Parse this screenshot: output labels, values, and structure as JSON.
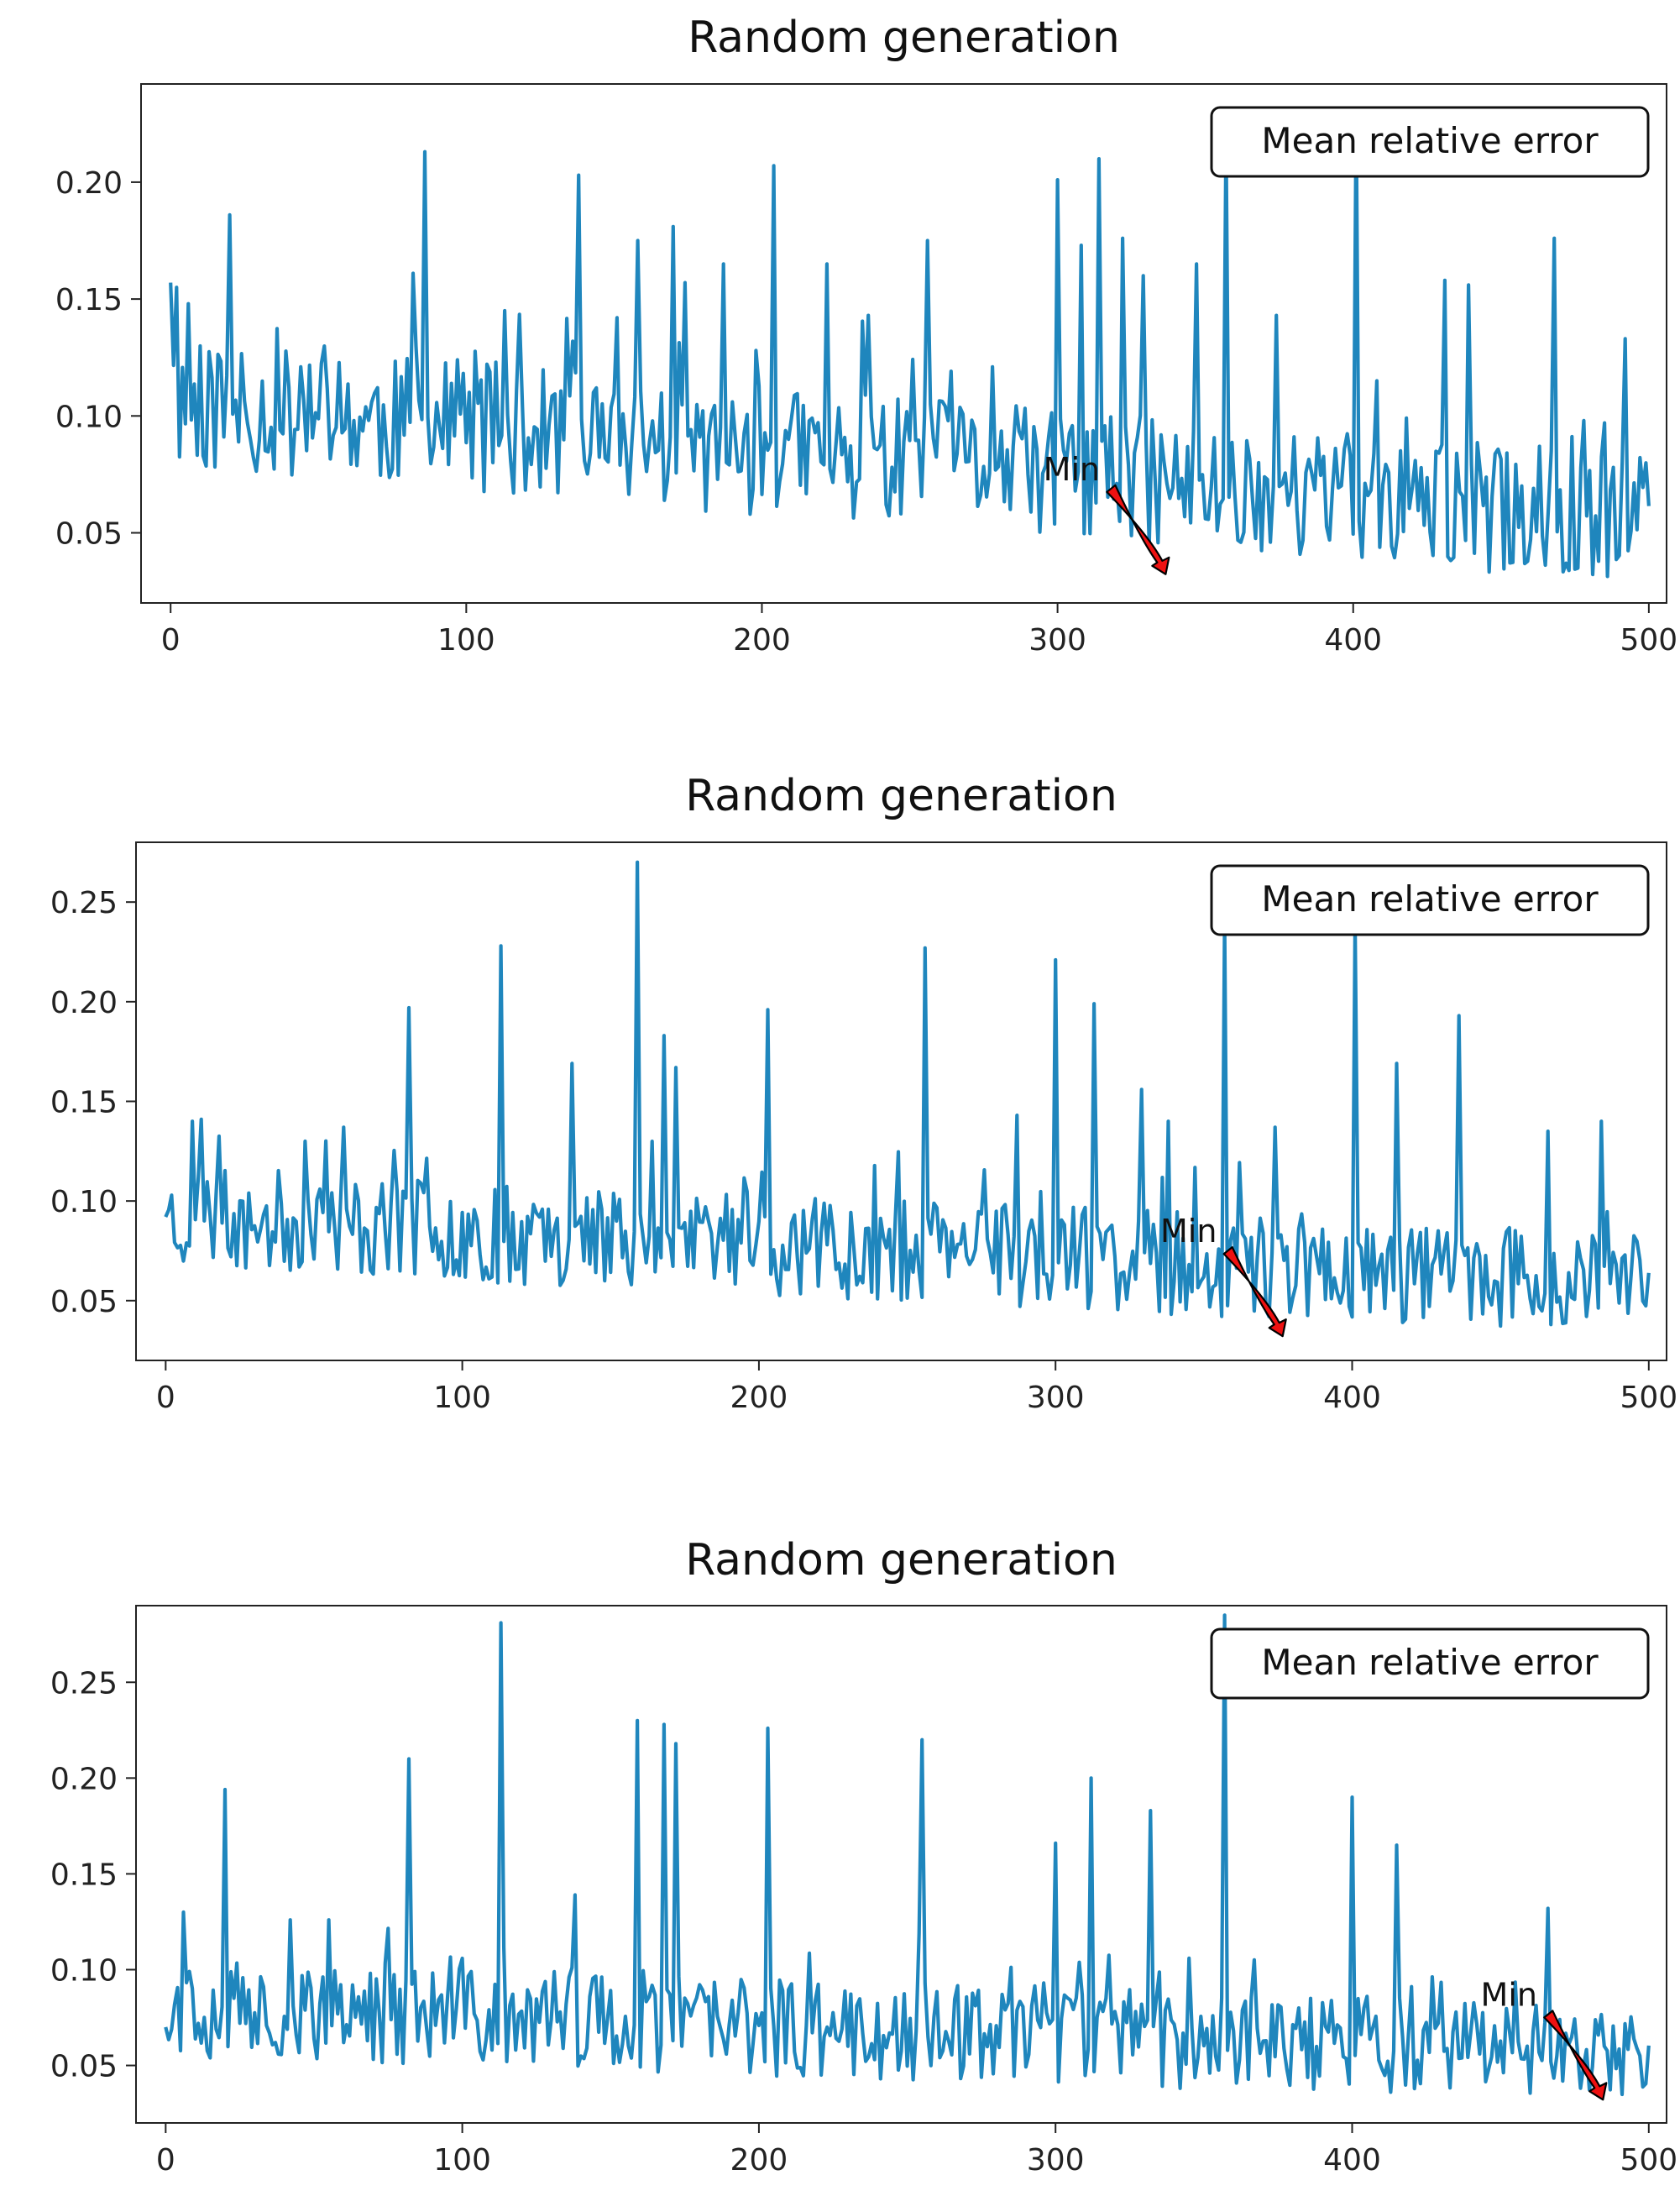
{
  "chart_data": [
    {
      "type": "line",
      "title": "Random generation",
      "legend": "Mean relative error",
      "legend_position": "top-right",
      "annotation": {
        "text": "Min",
        "target_x": 336,
        "target_y": 0.033
      },
      "xlabel": "",
      "ylabel": "",
      "xlim": [
        -10,
        506
      ],
      "ylim": [
        0.02,
        0.242
      ],
      "xticks": [
        0,
        100,
        200,
        300,
        400,
        500
      ],
      "yticks": [
        0.05,
        0.1,
        0.15,
        0.2
      ],
      "series": [
        {
          "name": "Mean relative error",
          "color": "#1f86bd",
          "seed": 11,
          "start": 0.157,
          "baseline_start": 0.105,
          "baseline_end": 0.055,
          "noise": 0.028,
          "floor": 0.03,
          "spikes": [
            [
              2,
              0.155
            ],
            [
              6,
              0.148
            ],
            [
              20,
              0.186
            ],
            [
              44,
              0.121
            ],
            [
              82,
              0.161
            ],
            [
              86,
              0.213
            ],
            [
              97,
              0.124
            ],
            [
              110,
              0.123
            ],
            [
              113,
              0.145
            ],
            [
              138,
              0.203
            ],
            [
              151,
              0.142
            ],
            [
              158,
              0.175
            ],
            [
              170,
              0.181
            ],
            [
              174,
              0.157
            ],
            [
              187,
              0.165
            ],
            [
              198,
              0.128
            ],
            [
              204,
              0.207
            ],
            [
              222,
              0.165
            ],
            [
              236,
              0.143
            ],
            [
              256,
              0.175
            ],
            [
              278,
              0.121
            ],
            [
              300,
              0.201
            ],
            [
              308,
              0.173
            ],
            [
              314,
              0.21
            ],
            [
              322,
              0.176
            ],
            [
              329,
              0.16
            ],
            [
              347,
              0.165
            ],
            [
              357,
              0.22
            ],
            [
              374,
              0.143
            ],
            [
              401,
              0.23
            ],
            [
              408,
              0.115
            ],
            [
              431,
              0.158
            ],
            [
              439,
              0.156
            ],
            [
              463,
              0.087
            ],
            [
              468,
              0.176
            ],
            [
              478,
              0.098
            ],
            [
              485,
              0.097
            ],
            [
              492,
              0.133
            ]
          ]
        }
      ]
    },
    {
      "type": "line",
      "title": "Random generation",
      "legend": "Mean relative error",
      "legend_position": "top-right",
      "annotation": {
        "text": "Min",
        "target_x": 376,
        "target_y": 0.033
      },
      "xlabel": "",
      "ylabel": "",
      "xlim": [
        -10,
        506
      ],
      "ylim": [
        0.02,
        0.28
      ],
      "xticks": [
        0,
        100,
        200,
        300,
        400,
        500
      ],
      "yticks": [
        0.05,
        0.1,
        0.15,
        0.2,
        0.25
      ],
      "series": [
        {
          "name": "Mean relative error",
          "color": "#1f86bd",
          "seed": 23,
          "start": 0.092,
          "baseline_start": 0.092,
          "baseline_end": 0.058,
          "noise": 0.026,
          "floor": 0.03,
          "spikes": [
            [
              9,
              0.14
            ],
            [
              12,
              0.141
            ],
            [
              47,
              0.13
            ],
            [
              60,
              0.137
            ],
            [
              82,
              0.197
            ],
            [
              113,
              0.228
            ],
            [
              137,
              0.169
            ],
            [
              159,
              0.27
            ],
            [
              168,
              0.183
            ],
            [
              172,
              0.167
            ],
            [
              203,
              0.196
            ],
            [
              256,
              0.227
            ],
            [
              287,
              0.143
            ],
            [
              300,
              0.221
            ],
            [
              313,
              0.199
            ],
            [
              329,
              0.156
            ],
            [
              338,
              0.14
            ],
            [
              357,
              0.241
            ],
            [
              374,
              0.137
            ],
            [
              401,
              0.24
            ],
            [
              415,
              0.169
            ],
            [
              436,
              0.193
            ],
            [
              466,
              0.135
            ],
            [
              484,
              0.14
            ]
          ]
        }
      ]
    },
    {
      "type": "line",
      "title": "Random generation",
      "legend": "Mean relative error",
      "legend_position": "top-right",
      "annotation": {
        "text": "Min",
        "target_x": 484,
        "target_y": 0.033
      },
      "xlabel": "",
      "ylabel": "",
      "xlim": [
        -10,
        506
      ],
      "ylim": [
        0.02,
        0.29
      ],
      "xticks": [
        0,
        100,
        200,
        300,
        400,
        500
      ],
      "yticks": [
        0.05,
        0.1,
        0.15,
        0.2,
        0.25
      ],
      "series": [
        {
          "name": "Mean relative error",
          "color": "#1f86bd",
          "seed": 37,
          "start": 0.07,
          "baseline_start": 0.08,
          "baseline_end": 0.056,
          "noise": 0.026,
          "floor": 0.03,
          "spikes": [
            [
              6,
              0.13
            ],
            [
              20,
              0.194
            ],
            [
              42,
              0.126
            ],
            [
              55,
              0.126
            ],
            [
              82,
              0.21
            ],
            [
              113,
              0.281
            ],
            [
              138,
              0.139
            ],
            [
              159,
              0.23
            ],
            [
              168,
              0.228
            ],
            [
              172,
              0.218
            ],
            [
              203,
              0.226
            ],
            [
              255,
              0.22
            ],
            [
              300,
              0.166
            ],
            [
              312,
              0.2
            ],
            [
              332,
              0.183
            ],
            [
              357,
              0.285
            ],
            [
              400,
              0.19
            ],
            [
              415,
              0.165
            ],
            [
              466,
              0.132
            ]
          ]
        }
      ]
    }
  ]
}
